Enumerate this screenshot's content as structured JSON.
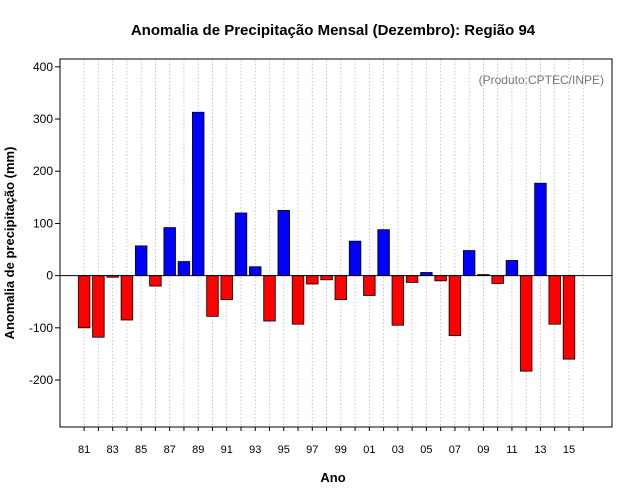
{
  "chart_data": {
    "type": "bar",
    "title": "Anomalia de Precipitação Mensal (Dezembro): Região 94",
    "xlabel": "Ano",
    "ylabel": "Anomalia de precipitação (mm)",
    "credit": "(Produto:CPTEC/INPE)",
    "ylim": [
      -290,
      415
    ],
    "yticks": [
      -200,
      -100,
      0,
      100,
      200,
      300,
      400
    ],
    "ytick_labels": [
      "-200",
      "-100",
      "0",
      "100",
      "200",
      "300",
      "400"
    ],
    "xtick_labels": [
      "81",
      "83",
      "85",
      "87",
      "89",
      "91",
      "93",
      "95",
      "97",
      "99",
      "01",
      "03",
      "05",
      "07",
      "09",
      "11",
      "13",
      "15"
    ],
    "grid": "vertical dotted",
    "categories": [
      "1981",
      "1982",
      "1983",
      "1984",
      "1985",
      "1986",
      "1987",
      "1988",
      "1989",
      "1990",
      "1991",
      "1992",
      "1993",
      "1994",
      "1995",
      "1996",
      "1997",
      "1998",
      "1999",
      "2000",
      "2001",
      "2002",
      "2003",
      "2004",
      "2005",
      "2006",
      "2007",
      "2008",
      "2009",
      "2010",
      "2011",
      "2012",
      "2013",
      "2014",
      "2015",
      "2016"
    ],
    "values": [
      -100,
      -118,
      -3,
      -85,
      57,
      -20,
      92,
      27,
      313,
      -78,
      -46,
      120,
      17,
      -87,
      125,
      -93,
      -16,
      -8,
      -46,
      66,
      -38,
      88,
      -95,
      -13,
      6,
      -10,
      -115,
      48,
      2,
      -15,
      29,
      -183,
      177,
      -93,
      -160,
      null
    ],
    "colors": {
      "positive": "#0000ff",
      "negative": "#ff0000"
    }
  }
}
